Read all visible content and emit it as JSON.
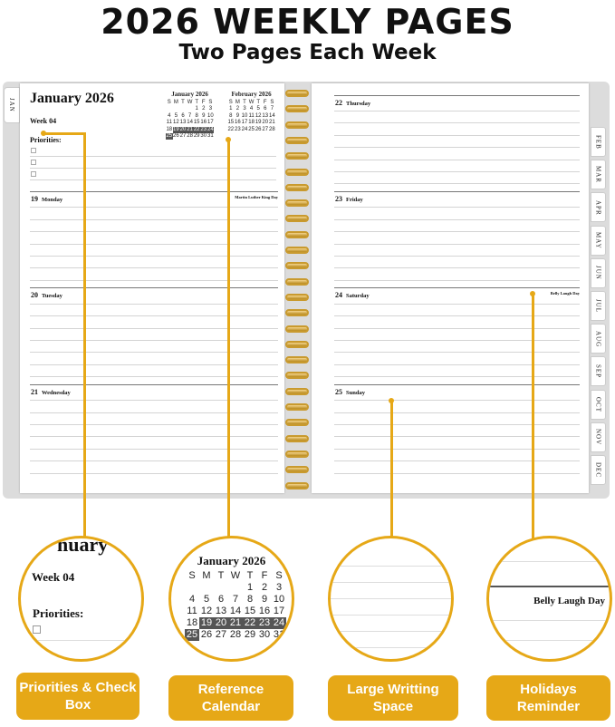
{
  "header": {
    "title": "2026 WEEKLY PAGES",
    "subtitle": "Two Pages Each Week"
  },
  "planner": {
    "month_title": "January 2026",
    "week": "Week 04",
    "priorities_label": "Priorities:",
    "left_tab": "JAN",
    "right_tabs": [
      "FEB",
      "MAR",
      "APR",
      "MAY",
      "JUN",
      "JUL",
      "AUG",
      "SEP",
      "OCT",
      "NOV",
      "DEC"
    ],
    "mini_calendars": [
      {
        "title": "January 2026",
        "weekdays": [
          "S",
          "M",
          "T",
          "W",
          "T",
          "F",
          "S"
        ],
        "weeks": [
          [
            "",
            "",
            "",
            "",
            "1",
            "2",
            "3"
          ],
          [
            "4",
            "5",
            "6",
            "7",
            "8",
            "9",
            "10"
          ],
          [
            "11",
            "12",
            "13",
            "14",
            "15",
            "16",
            "17"
          ],
          [
            "18",
            "19",
            "20",
            "21",
            "22",
            "23",
            "24"
          ],
          [
            "25",
            "26",
            "27",
            "28",
            "29",
            "30",
            "31"
          ]
        ],
        "highlighted": [
          "19",
          "20",
          "21",
          "22",
          "23",
          "24",
          "25"
        ]
      },
      {
        "title": "February 2026",
        "weekdays": [
          "S",
          "M",
          "T",
          "W",
          "T",
          "F",
          "S"
        ],
        "weeks": [
          [
            "1",
            "2",
            "3",
            "4",
            "5",
            "6",
            "7"
          ],
          [
            "8",
            "9",
            "10",
            "11",
            "12",
            "13",
            "14"
          ],
          [
            "15",
            "16",
            "17",
            "18",
            "19",
            "20",
            "21"
          ],
          [
            "22",
            "23",
            "24",
            "25",
            "26",
            "27",
            "28"
          ]
        ],
        "highlighted": []
      }
    ],
    "left_days": [
      {
        "num": "19",
        "name": "Monday",
        "holiday": "Martin Luther King Day"
      },
      {
        "num": "20",
        "name": "Tuesday",
        "holiday": ""
      },
      {
        "num": "21",
        "name": "Wednesday",
        "holiday": ""
      }
    ],
    "right_days": [
      {
        "num": "22",
        "name": "Thursday",
        "holiday": ""
      },
      {
        "num": "23",
        "name": "Friday",
        "holiday": ""
      },
      {
        "num": "24",
        "name": "Saturday",
        "holiday": "Belly Laugh Day"
      },
      {
        "num": "25",
        "name": "Sunday",
        "holiday": ""
      }
    ]
  },
  "callouts": [
    {
      "label": "Priorities & Check Box",
      "zoom_title_fragment": "nuary",
      "zoom_week": "Week 04",
      "zoom_priorities": "Priorities:"
    },
    {
      "label": "Reference Calendar",
      "zoom_title": "January 2026"
    },
    {
      "label": "Large Writting Space"
    },
    {
      "label": "Holidays Reminder",
      "zoom_holiday": "Belly Laugh Day"
    }
  ],
  "colors": {
    "accent": "#e6a817",
    "highlight_cell": "#555555",
    "ring": "#c99a2e"
  }
}
